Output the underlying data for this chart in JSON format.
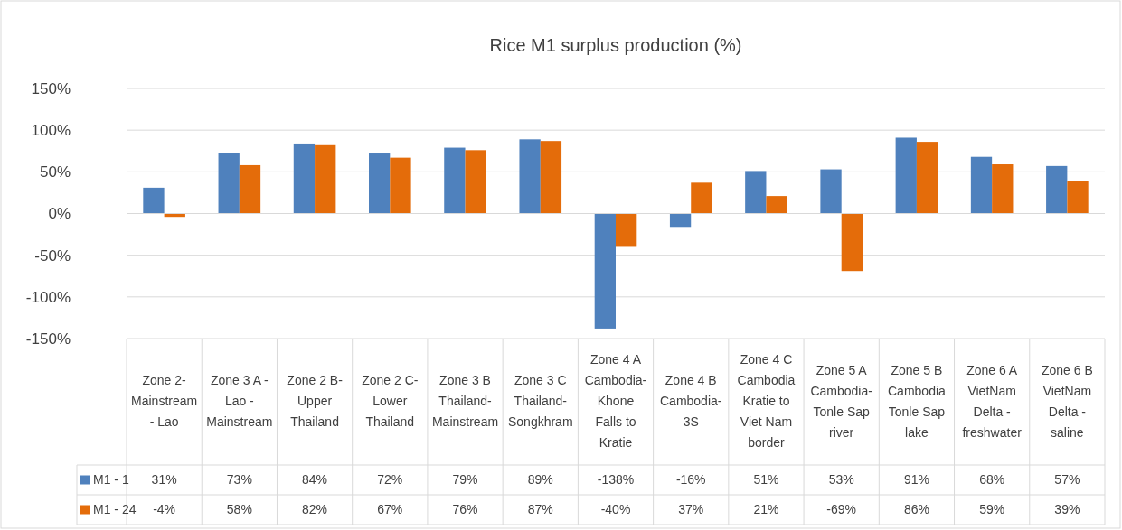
{
  "chart_data": {
    "type": "bar",
    "title": "Rice M1 surplus production (%)",
    "categories": [
      "Zone 2- Mainstream - Lao",
      "Zone 3 A - Lao - Mainstream",
      "Zone 2 B- Upper Thailand",
      "Zone 2 C- Lower Thailand",
      "Zone 3 B Thailand- Mainstream",
      "Zone 3 C Thailand- Songkhram",
      "Zone 4 A Cambodia-Khone Falls to Kratie",
      "Zone 4 B Cambodia-3S",
      "Zone 4 C Cambodia Kratie to Viet Nam border",
      "Zone 5 A Cambodia-Tonle Sap river",
      "Zone 5 B Cambodia Tonle Sap lake",
      "Zone 6 A VietNam Delta - freshwater",
      "Zone 6 B VietNam Delta - saline"
    ],
    "series": [
      {
        "name": "M1 - 1",
        "color": "#4f81bd",
        "values": [
          31,
          73,
          84,
          72,
          79,
          89,
          -138,
          -16,
          51,
          53,
          91,
          68,
          57
        ],
        "value_labels": [
          "31%",
          "73%",
          "84%",
          "72%",
          "79%",
          "89%",
          "-138%",
          "-16%",
          "51%",
          "53%",
          "91%",
          "68%",
          "57%"
        ]
      },
      {
        "name": "M1 - 24",
        "color": "#e46c0a",
        "values": [
          -4,
          58,
          82,
          67,
          76,
          87,
          -40,
          37,
          21,
          -69,
          86,
          59,
          39
        ],
        "value_labels": [
          "-4%",
          "58%",
          "82%",
          "67%",
          "76%",
          "87%",
          "-40%",
          "37%",
          "21%",
          "-69%",
          "86%",
          "59%",
          "39%"
        ]
      }
    ],
    "ylim": [
      -150,
      150
    ],
    "yticks": [
      {
        "value": -150,
        "label": "-150%"
      },
      {
        "value": -100,
        "label": "-100%"
      },
      {
        "value": -50,
        "label": "-50%"
      },
      {
        "value": 0,
        "label": "0%"
      },
      {
        "value": 50,
        "label": "50%"
      },
      {
        "value": 100,
        "label": "100%"
      },
      {
        "value": 150,
        "label": "150%"
      }
    ],
    "grid": "y",
    "legend": "bottom"
  }
}
